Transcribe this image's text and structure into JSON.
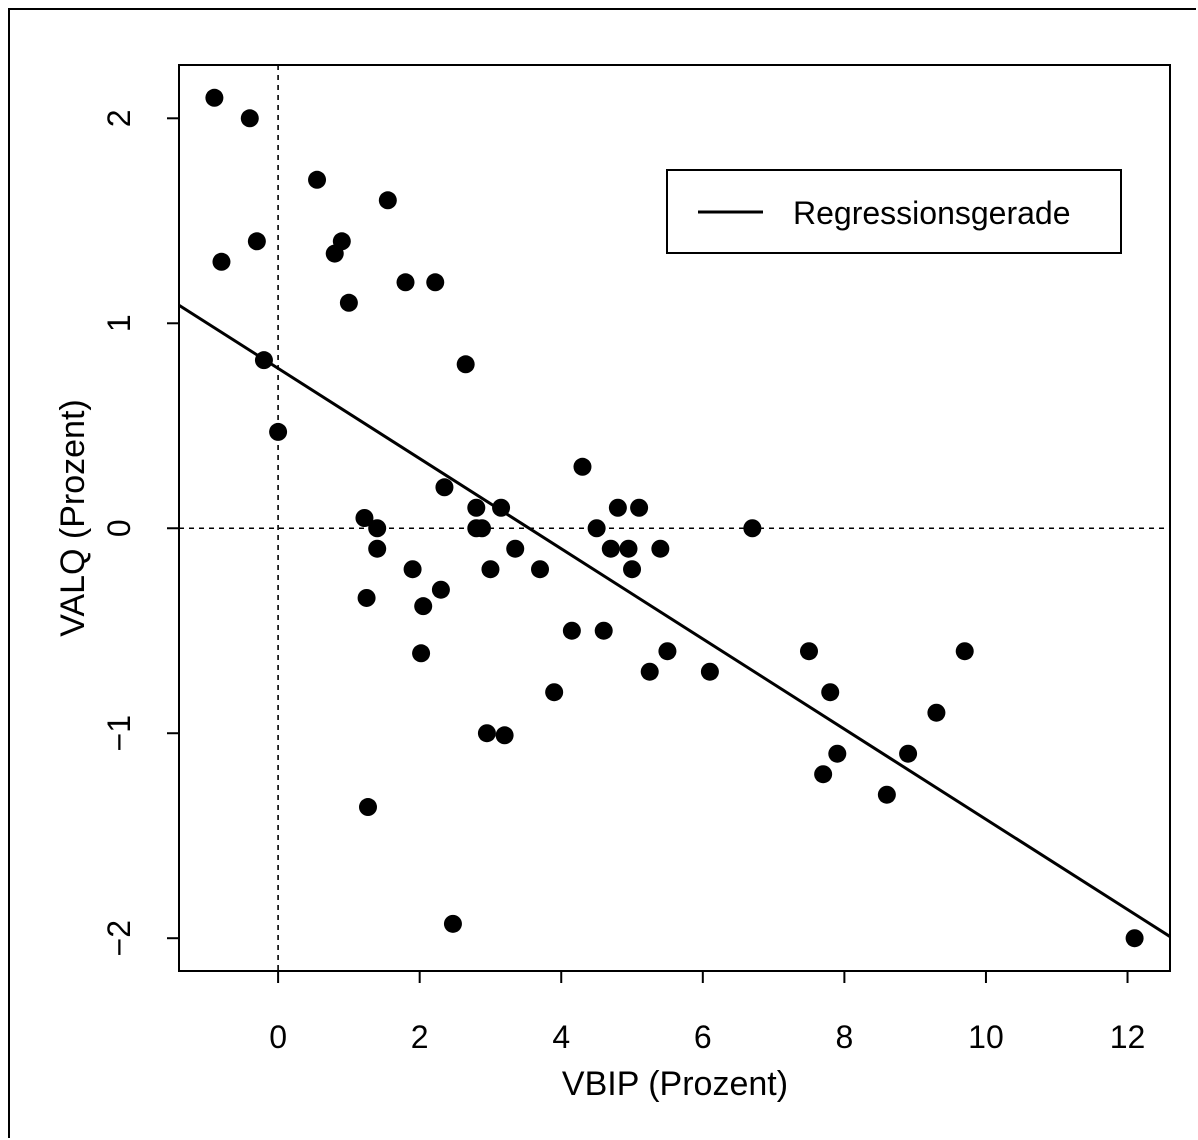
{
  "chart_data": {
    "type": "scatter",
    "xlabel": "VBIP (Prozent)",
    "ylabel": "VALQ (Prozent)",
    "xlim": [
      -1.4,
      12.6
    ],
    "ylim": [
      -2.16,
      2.26
    ],
    "x_ticks": [
      0,
      2,
      4,
      6,
      8,
      10,
      12
    ],
    "x_tick_labels": [
      "0",
      "2",
      "4",
      "6",
      "8",
      "10",
      "12"
    ],
    "y_ticks": [
      -2,
      -1,
      0,
      1,
      2
    ],
    "y_tick_labels": [
      "−2",
      "−1",
      "0",
      "1",
      "2"
    ],
    "reference_lines": {
      "x": 0,
      "y": 0,
      "style": "dashed"
    },
    "legend": {
      "position": "top-right",
      "entries": [
        "Regressionsgerade"
      ]
    },
    "regression_line": {
      "name": "Regressionsgerade",
      "intercept": 0.78,
      "slope": -0.22
    },
    "points": [
      [
        -0.9,
        2.1
      ],
      [
        -0.8,
        1.3
      ],
      [
        -0.4,
        2.0
      ],
      [
        -0.3,
        1.4
      ],
      [
        -0.2,
        0.82
      ],
      [
        0.0,
        0.47
      ],
      [
        0.55,
        1.7
      ],
      [
        0.8,
        1.34
      ],
      [
        0.9,
        1.4
      ],
      [
        1.0,
        1.1
      ],
      [
        1.22,
        0.05
      ],
      [
        1.25,
        -0.34
      ],
      [
        1.27,
        -1.36
      ],
      [
        1.4,
        0.0
      ],
      [
        1.4,
        -0.1
      ],
      [
        1.55,
        1.6
      ],
      [
        1.8,
        1.2
      ],
      [
        1.9,
        -0.2
      ],
      [
        2.02,
        -0.61
      ],
      [
        2.05,
        -0.38
      ],
      [
        2.22,
        1.2
      ],
      [
        2.3,
        -0.3
      ],
      [
        2.35,
        0.2
      ],
      [
        2.47,
        -1.93
      ],
      [
        2.65,
        0.8
      ],
      [
        2.8,
        0.1
      ],
      [
        2.8,
        0.0
      ],
      [
        2.88,
        0.0
      ],
      [
        2.95,
        -1.0
      ],
      [
        3.0,
        -0.2
      ],
      [
        3.15,
        0.1
      ],
      [
        3.2,
        -1.01
      ],
      [
        3.35,
        -0.1
      ],
      [
        3.7,
        -0.2
      ],
      [
        3.9,
        -0.8
      ],
      [
        4.15,
        -0.5
      ],
      [
        4.3,
        0.3
      ],
      [
        4.5,
        0.0
      ],
      [
        4.6,
        -0.5
      ],
      [
        4.7,
        -0.1
      ],
      [
        4.8,
        0.1
      ],
      [
        4.95,
        -0.1
      ],
      [
        5.0,
        -0.2
      ],
      [
        5.1,
        0.1
      ],
      [
        5.25,
        -0.7
      ],
      [
        5.4,
        -0.1
      ],
      [
        5.5,
        -0.6
      ],
      [
        6.1,
        -0.7
      ],
      [
        6.7,
        0.0
      ],
      [
        7.5,
        -0.6
      ],
      [
        7.7,
        -1.2
      ],
      [
        7.8,
        -0.8
      ],
      [
        7.9,
        -1.1
      ],
      [
        8.6,
        -1.3
      ],
      [
        8.9,
        -1.1
      ],
      [
        9.3,
        -0.9
      ],
      [
        9.7,
        -0.6
      ],
      [
        12.1,
        -2.0
      ]
    ]
  }
}
